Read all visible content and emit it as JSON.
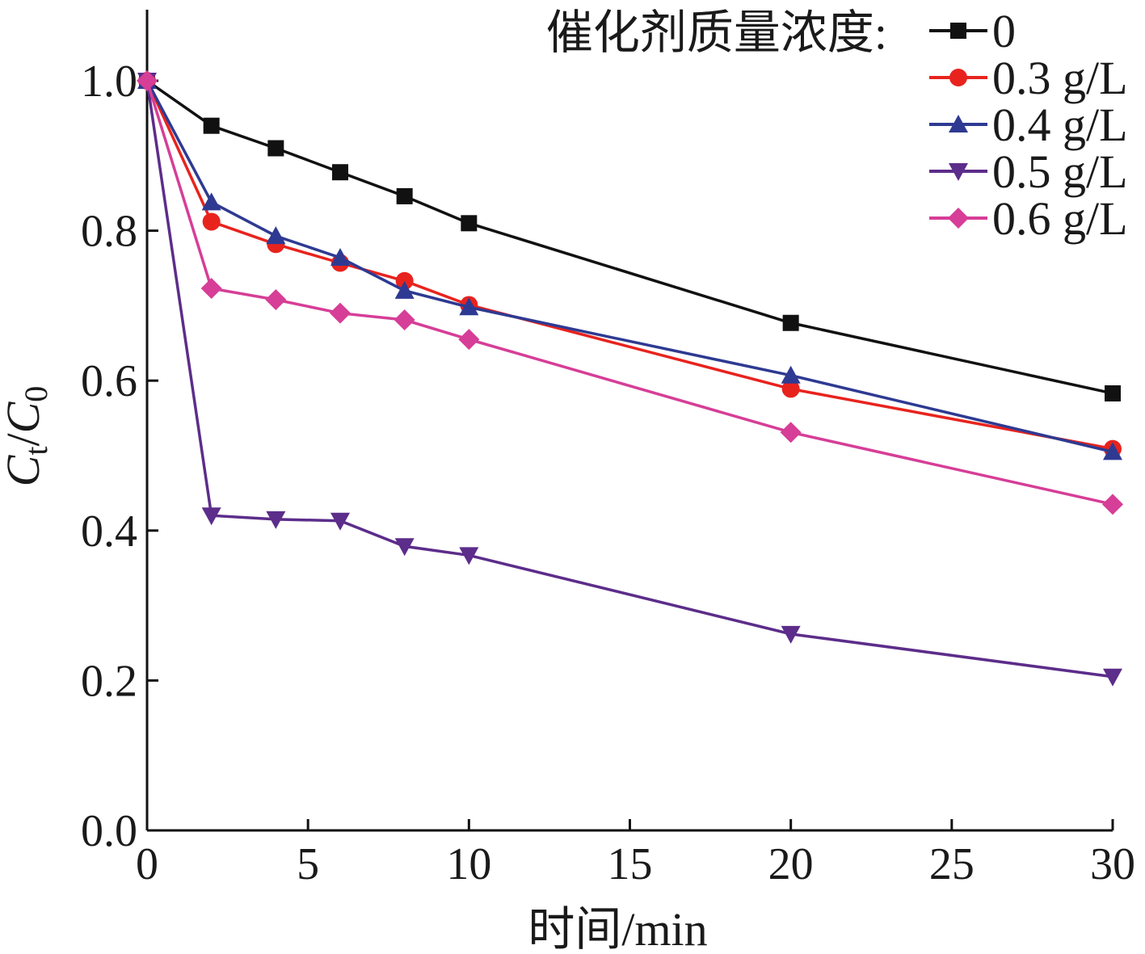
{
  "chart_data": {
    "type": "line",
    "xlabel": "时间/min",
    "ylabel": "Ct/C0",
    "ylabel_parts": {
      "main1": "C",
      "sub1": "t",
      "slash": "/",
      "main2": "C",
      "sub2": "0"
    },
    "xlim": [
      0,
      30
    ],
    "ylim": [
      0,
      1.1
    ],
    "xticks": [
      0,
      5,
      10,
      15,
      20,
      25,
      30
    ],
    "xtick_labels": [
      "0",
      "5",
      "10",
      "15",
      "20",
      "25",
      "30"
    ],
    "yticks": [
      0,
      0.2,
      0.4,
      0.6,
      0.8,
      1.0
    ],
    "ytick_labels": [
      "0.0",
      "0.2",
      "0.4",
      "0.6",
      "0.8",
      "1.0"
    ],
    "grid": false,
    "legend_title": "催化剂质量浓度:",
    "legend_position": "top-right",
    "x": [
      0,
      2,
      4,
      6,
      8,
      10,
      20,
      30
    ],
    "series": [
      {
        "name": "0",
        "color": "#111111",
        "marker": "square",
        "values": [
          1.0,
          0.94,
          0.91,
          0.878,
          0.846,
          0.81,
          0.677,
          0.583
        ]
      },
      {
        "name": "0.3 g/L",
        "color": "#e8231e",
        "marker": "circle",
        "values": [
          1.0,
          0.812,
          0.782,
          0.757,
          0.733,
          0.701,
          0.589,
          0.509
        ]
      },
      {
        "name": "0.4 g/L",
        "color": "#2e3a92",
        "marker": "triangle-up",
        "values": [
          1.0,
          0.838,
          0.793,
          0.764,
          0.72,
          0.698,
          0.607,
          0.505
        ]
      },
      {
        "name": "0.5 g/L",
        "color": "#5c2d8a",
        "marker": "triangle-down",
        "values": [
          1.0,
          0.42,
          0.415,
          0.413,
          0.379,
          0.367,
          0.262,
          0.205
        ]
      },
      {
        "name": "0.6 g/L",
        "color": "#d63e97",
        "marker": "diamond",
        "values": [
          1.0,
          0.723,
          0.708,
          0.69,
          0.681,
          0.655,
          0.531,
          0.435
        ]
      }
    ]
  }
}
